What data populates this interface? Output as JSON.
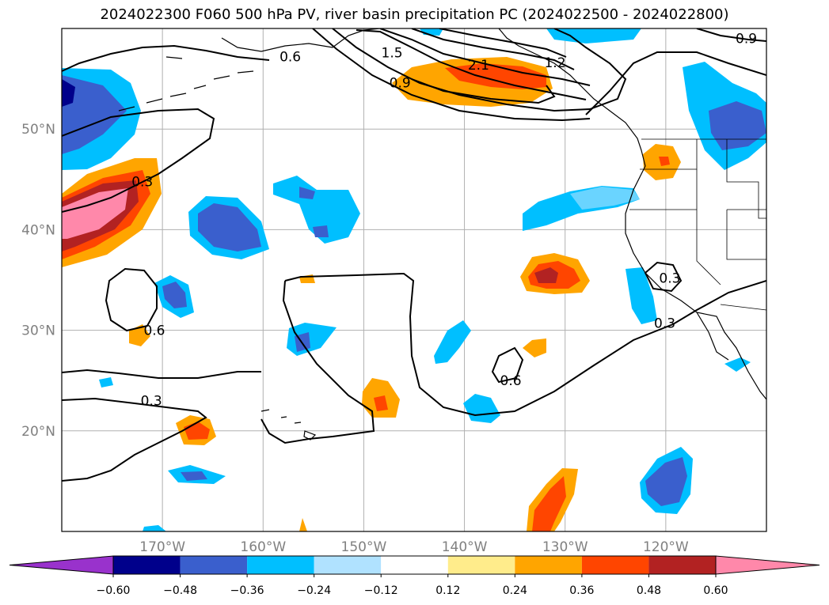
{
  "title": "2024022300 F060 500 hPa PV, river basin precipitation PC (2024022500 - 2024022800)",
  "map": {
    "projection": "PlateCarree",
    "lon_range": [
      -180,
      -110
    ],
    "lat_range": [
      10,
      60
    ],
    "gridlines": true,
    "lat_labels": [
      {
        "lat": 50,
        "text": "50°N"
      },
      {
        "lat": 40,
        "text": "40°N"
      },
      {
        "lat": 30,
        "text": "30°N"
      },
      {
        "lat": 20,
        "text": "20°N"
      }
    ],
    "lon_labels": [
      {
        "lon": -170,
        "text": "170°W"
      },
      {
        "lon": -160,
        "text": "160°W"
      },
      {
        "lon": -150,
        "text": "150°W"
      },
      {
        "lon": -140,
        "text": "140°W"
      },
      {
        "lon": -130,
        "text": "130°W"
      },
      {
        "lon": -120,
        "text": "120°W"
      }
    ]
  },
  "contour_labels": [
    {
      "text": "0.3",
      "lon": -172,
      "lat": 44.8
    },
    {
      "text": "0.6",
      "lon": -170.8,
      "lat": 30.0
    },
    {
      "text": "0.3",
      "lon": -171.1,
      "lat": 23.0
    },
    {
      "text": "0.6",
      "lon": -135.4,
      "lat": 25.0
    },
    {
      "text": "0.3",
      "lon": -120.1,
      "lat": 30.7
    },
    {
      "text": "0.3",
      "lon": -119.6,
      "lat": 35.2
    },
    {
      "text": "0.9",
      "lon": -146.4,
      "lat": 54.6
    },
    {
      "text": "2.1",
      "lon": -138.6,
      "lat": 56.4
    },
    {
      "text": "1.5",
      "lon": -147.2,
      "lat": 57.6
    },
    {
      "text": "0.6",
      "lon": -157.3,
      "lat": 57.2
    },
    {
      "text": "1.2",
      "lon": -131,
      "lat": 56.6
    },
    {
      "text": "0.9",
      "lon": -112.0,
      "lat": 59.0
    }
  ],
  "colorbar": {
    "ticks": [
      "−0.60",
      "−0.48",
      "−0.36",
      "−0.24",
      "−0.12",
      "0.12",
      "0.24",
      "0.36",
      "0.48",
      "0.60"
    ],
    "colors": {
      "below": "#9932cc",
      "bins": [
        "#00008b",
        "#3a5fcd",
        "#00bfff",
        "#b0e2ff",
        "#ffffff",
        "#ffec8b",
        "#ffa500",
        "#ff4500",
        "#b22222"
      ],
      "above": "#ff88aa"
    }
  }
}
